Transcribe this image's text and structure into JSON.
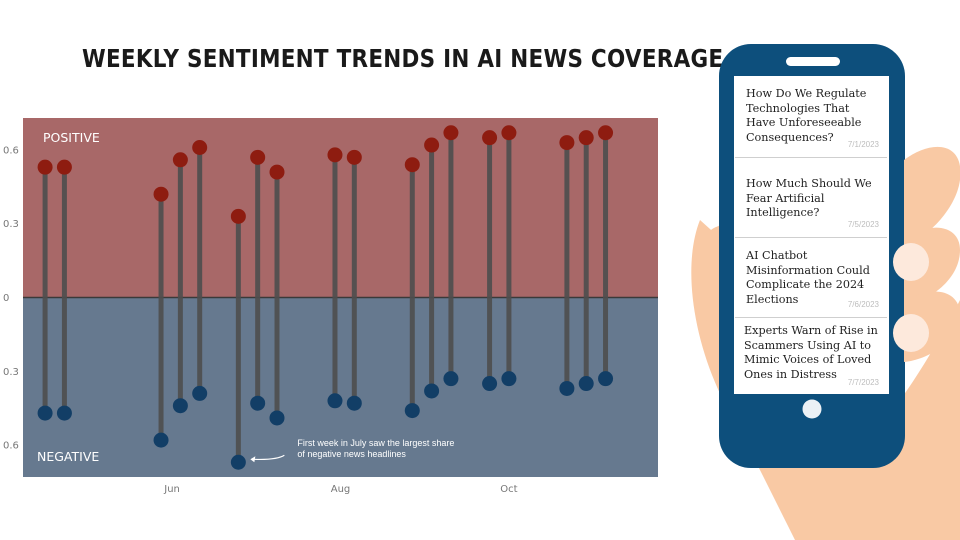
{
  "title": "WEEKLY SENTIMENT TRENDS IN AI NEWS COVERAGE",
  "chart_data": {
    "type": "lollipop",
    "title": "WEEKLY SENTIMENT TRENDS IN AI NEWS COVERAGE",
    "zones": {
      "positive": "POSITIVE",
      "negative": "NEGATIVE"
    },
    "ylim": [
      -0.73,
      0.73
    ],
    "y_ticks": [
      0.6,
      0.3,
      0,
      -0.3,
      -0.6
    ],
    "y_tick_labels": [
      "0.6",
      "0.3",
      "0",
      "0.3",
      "0.6"
    ],
    "x_ticks": [
      {
        "label": "Jun",
        "date": "2023-06-01"
      },
      {
        "label": "Aug",
        "date": "2023-08-01"
      },
      {
        "label": "Oct",
        "date": "2023-10-01"
      }
    ],
    "xlim": [
      "2023-04-08",
      "2023-11-24"
    ],
    "weeks": [
      {
        "date": "2023-04-16",
        "positive": 0.53,
        "negative": -0.47
      },
      {
        "date": "2023-04-23",
        "positive": 0.53,
        "negative": -0.47
      },
      {
        "date": "2023-05-28",
        "positive": 0.42,
        "negative": -0.58
      },
      {
        "date": "2023-06-04",
        "positive": 0.56,
        "negative": -0.44
      },
      {
        "date": "2023-06-11",
        "positive": 0.61,
        "negative": -0.39
      },
      {
        "date": "2023-06-25",
        "positive": 0.33,
        "negative": -0.67
      },
      {
        "date": "2023-07-02",
        "positive": 0.57,
        "negative": -0.43
      },
      {
        "date": "2023-07-09",
        "positive": 0.51,
        "negative": -0.49
      },
      {
        "date": "2023-07-30",
        "positive": 0.58,
        "negative": -0.42
      },
      {
        "date": "2023-08-06",
        "positive": 0.57,
        "negative": -0.43
      },
      {
        "date": "2023-08-27",
        "positive": 0.54,
        "negative": -0.46
      },
      {
        "date": "2023-09-03",
        "positive": 0.62,
        "negative": -0.38
      },
      {
        "date": "2023-09-10",
        "positive": 0.67,
        "negative": -0.33
      },
      {
        "date": "2023-09-24",
        "positive": 0.65,
        "negative": -0.35
      },
      {
        "date": "2023-10-01",
        "positive": 0.67,
        "negative": -0.33
      },
      {
        "date": "2023-10-22",
        "positive": 0.63,
        "negative": -0.37
      },
      {
        "date": "2023-10-29",
        "positive": 0.65,
        "negative": -0.35
      },
      {
        "date": "2023-11-05",
        "positive": 0.67,
        "negative": -0.33
      }
    ],
    "annotation": {
      "text": [
        "First week in July saw the largest share",
        "of negative news headlines"
      ],
      "date": "2023-06-25",
      "value": -0.67
    },
    "colors": {
      "positive_zone": "#a86868",
      "negative_zone": "#66798f",
      "positive_dot": "#8e1c10",
      "negative_dot": "#123e66",
      "stem": "#4e4e4e"
    },
    "grid": false
  },
  "phone": {
    "articles": [
      {
        "headline": "How Do We Regulate Technologies That Have Unforeseeable Consequences?",
        "date": "7/1/2023"
      },
      {
        "headline": "How Much Should We Fear Artificial Intelligence?",
        "date": "7/5/2023"
      },
      {
        "headline": "AI Chatbot Misinformation Could Complicate the 2024 Elections",
        "date": "7/6/2023"
      },
      {
        "headline": "Experts Warn of Rise in Scammers Using AI to Mimic Voices of Loved Ones in Distress",
        "date": "7/7/2023"
      }
    ],
    "colors": {
      "body": "#0d4f7c",
      "skin": "#f9c9a4",
      "nail": "#fde9dc"
    }
  }
}
